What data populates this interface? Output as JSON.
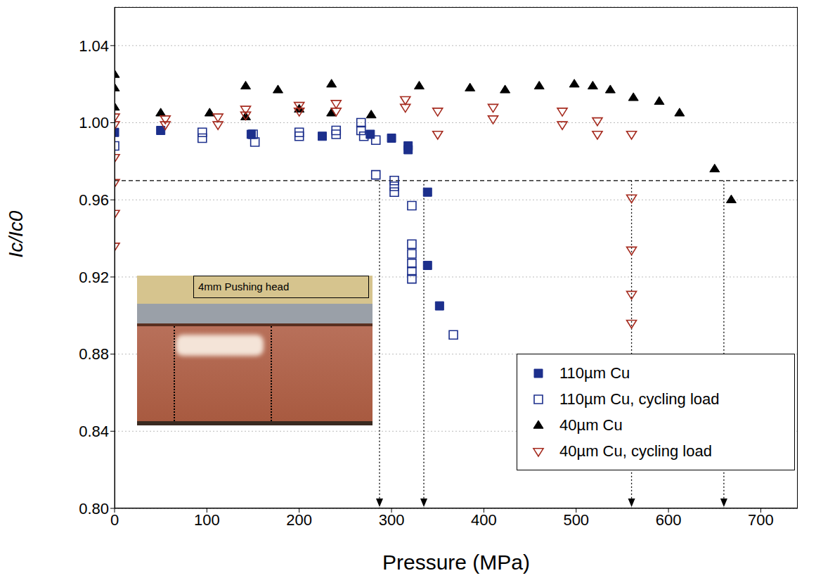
{
  "chart_data": {
    "type": "scatter",
    "x_label": "Pressure (MPa)",
    "y_label": "Ic/Ic0",
    "annotation": "4mm Pushing head",
    "xlim": [
      0,
      740
    ],
    "xticks": [
      0,
      100,
      200,
      300,
      400,
      500,
      600,
      700
    ],
    "ylim": [
      0.8,
      1.06
    ],
    "yticks": [
      {
        "value": 0.8,
        "label": "0.80"
      },
      0.84,
      0.88,
      0.92,
      0.96,
      {
        "value": 1,
        "label": "1.00"
      },
      1.04
    ],
    "grid": true,
    "legend": "lower right",
    "reference_lines": {
      "y": [
        0.97
      ],
      "x": [
        287,
        335,
        560,
        660
      ]
    },
    "series": [
      {
        "name": "110µm Cu",
        "color": "#1c2f8c",
        "marker": "square",
        "x": [
          0,
          50,
          148,
          225,
          277,
          300,
          318,
          318,
          339,
          339,
          352
        ],
        "values": [
          0.995,
          0.996,
          0.994,
          0.993,
          0.994,
          0.992,
          0.988,
          0.986,
          0.964,
          0.926,
          0.905
        ]
      },
      {
        "name": "110µm Cu, cycling load",
        "color": "#1c2f8c",
        "marker": "open_square",
        "x": [
          0,
          95,
          95,
          150,
          152,
          200,
          200,
          240,
          240,
          267,
          267,
          270,
          283,
          283,
          303,
          303,
          303,
          322,
          322,
          322,
          322,
          322,
          322,
          367
        ],
        "values": [
          0.988,
          0.995,
          0.992,
          0.994,
          0.99,
          0.995,
          0.993,
          0.996,
          0.994,
          1.0,
          0.996,
          0.993,
          0.991,
          0.973,
          0.97,
          0.967,
          0.964,
          0.957,
          0.937,
          0.932,
          0.927,
          0.923,
          0.919,
          0.89
        ]
      },
      {
        "name": "40µm Cu",
        "color": "#000000",
        "marker": "triangle",
        "x": [
          0,
          0,
          0,
          50,
          103,
          142,
          142,
          177,
          200,
          235,
          235,
          278,
          330,
          385,
          423,
          460,
          498,
          518,
          537,
          562,
          590,
          612,
          650,
          668
        ],
        "values": [
          1.025,
          1.018,
          1.008,
          1.005,
          1.005,
          1.019,
          1.003,
          1.017,
          1.007,
          1.02,
          1.005,
          1.004,
          1.019,
          1.018,
          1.017,
          1.019,
          1.02,
          1.019,
          1.017,
          1.013,
          1.011,
          1.005,
          0.976,
          0.96
        ]
      },
      {
        "name": "40µm Cu, cycling load",
        "color": "#a52a1e",
        "marker": "open_triangle_down",
        "x": [
          0,
          0,
          0,
          0,
          0,
          0,
          55,
          55,
          112,
          112,
          142,
          142,
          200,
          200,
          240,
          240,
          315,
          315,
          350,
          350,
          410,
          410,
          485,
          485,
          523,
          523,
          560,
          560,
          560,
          560,
          560
        ],
        "values": [
          1.003,
          0.999,
          0.982,
          0.969,
          0.953,
          0.936,
          1.002,
          0.999,
          1.003,
          0.999,
          1.007,
          1.004,
          1.009,
          1.006,
          1.01,
          1.006,
          1.012,
          1.008,
          1.006,
          0.994,
          1.008,
          1.002,
          1.006,
          0.999,
          1.001,
          0.994,
          0.994,
          0.961,
          0.934,
          0.911,
          0.896
        ]
      }
    ]
  }
}
